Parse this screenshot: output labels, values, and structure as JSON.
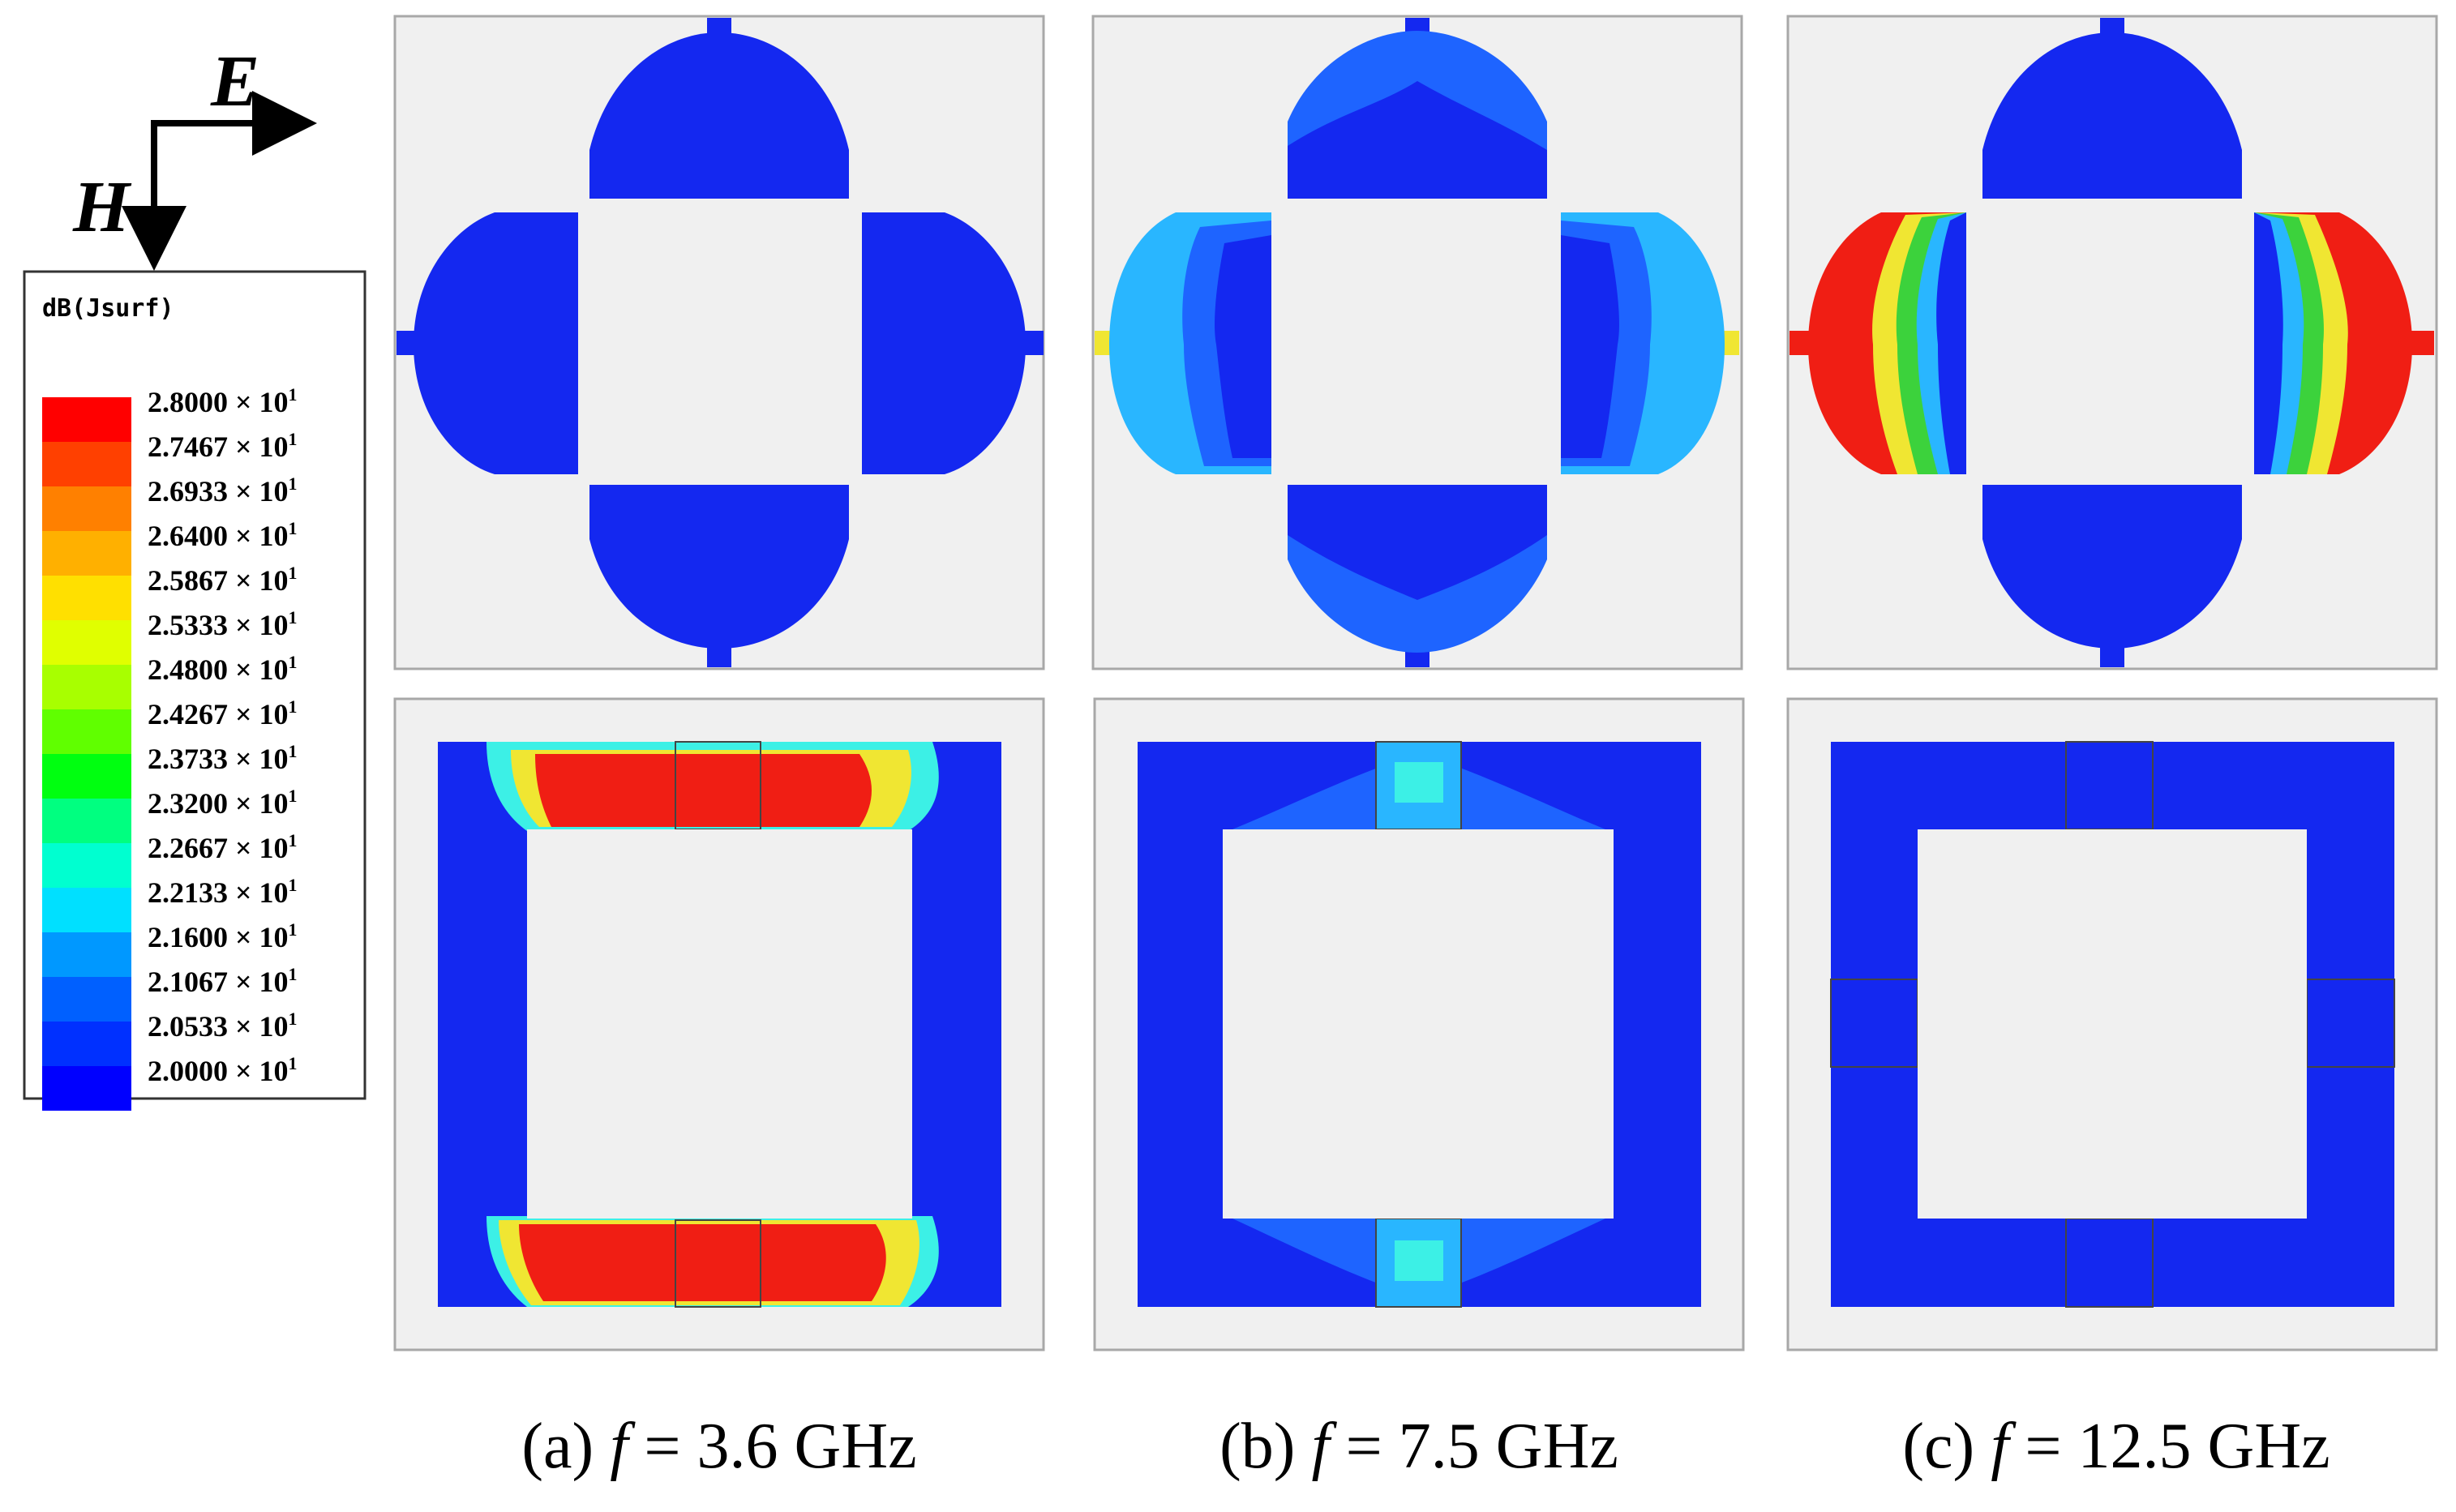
{
  "axes": {
    "e_label": "E",
    "h_label": "H"
  },
  "legend": {
    "title": "dB(Jsurf)",
    "levels": [
      {
        "label": "2.8000 × 10",
        "exp": "1",
        "color": "#ff0000"
      },
      {
        "label": "2.7467 × 10",
        "exp": "1",
        "color": "#ff4000"
      },
      {
        "label": "2.6933 × 10",
        "exp": "1",
        "color": "#ff8000"
      },
      {
        "label": "2.6400 × 10",
        "exp": "1",
        "color": "#ffb000"
      },
      {
        "label": "2.5867 × 10",
        "exp": "1",
        "color": "#ffe000"
      },
      {
        "label": "2.5333 × 10",
        "exp": "1",
        "color": "#e0ff00"
      },
      {
        "label": "2.4800 × 10",
        "exp": "1",
        "color": "#a8ff00"
      },
      {
        "label": "2.4267 × 10",
        "exp": "1",
        "color": "#60ff00"
      },
      {
        "label": "2.3733 × 10",
        "exp": "1",
        "color": "#00ff10"
      },
      {
        "label": "2.3200 × 10",
        "exp": "1",
        "color": "#00ff80"
      },
      {
        "label": "2.2667 × 10",
        "exp": "1",
        "color": "#00ffd0"
      },
      {
        "label": "2.2133 × 10",
        "exp": "1",
        "color": "#00e0ff"
      },
      {
        "label": "2.1600 × 10",
        "exp": "1",
        "color": "#0098ff"
      },
      {
        "label": "2.1067 × 10",
        "exp": "1",
        "color": "#0060ff"
      },
      {
        "label": "2.0533 × 10",
        "exp": "1",
        "color": "#0030ff"
      },
      {
        "label": "2.0000 × 10",
        "exp": "1",
        "color": "#0000ff"
      }
    ]
  },
  "captions": [
    {
      "prefix": "(a) ",
      "italic": "f",
      "suffix": " = 3.6 GHz"
    },
    {
      "prefix": "(b) ",
      "italic": "f",
      "suffix": " = 7.5 GHz"
    },
    {
      "prefix": "(c) ",
      "italic": "f",
      "suffix": " = 12.5 GHz"
    }
  ],
  "colors": {
    "background": "#f0f0f0",
    "border": "#a8a8a8",
    "low": "#1428f0",
    "mid": "#29b6ff",
    "cyan": "#3cf0e6",
    "green": "#3cd23c",
    "yellow": "#f0e632",
    "high": "#f01e14"
  }
}
